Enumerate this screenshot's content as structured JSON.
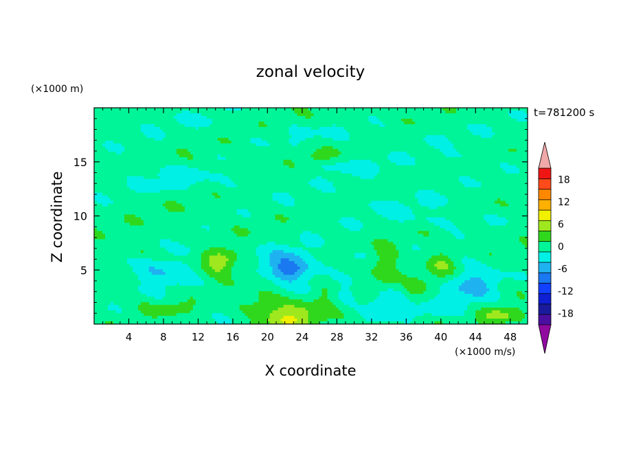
{
  "chart_data": {
    "type": "heatmap",
    "title": "zonal velocity",
    "xlabel": "X coordinate",
    "ylabel": "Z coordinate",
    "x_unit": "(×1000 m/s)",
    "y_unit": "(×1000 m)",
    "time_label": "t=781200 s",
    "xlim": [
      0,
      50
    ],
    "ylim": [
      0,
      20
    ],
    "x_ticks": [
      4,
      8,
      12,
      16,
      20,
      24,
      28,
      32,
      36,
      40,
      44,
      48
    ],
    "y_ticks": [
      5,
      10,
      15
    ],
    "colorbar": {
      "levels": [
        -21,
        -18,
        -15,
        -12,
        -9,
        -6,
        -3,
        0,
        3,
        6,
        9,
        12,
        15,
        18,
        21
      ],
      "tick_labels": [
        18,
        12,
        6,
        0,
        -6,
        -12,
        -18
      ],
      "colors": [
        "#4a0fa0",
        "#1a1a9c",
        "#0f1fd2",
        "#1140ff",
        "#1a78f0",
        "#1fb2f0",
        "#00f0e6",
        "#00f598",
        "#30d81d",
        "#a0e81e",
        "#f0f000",
        "#ffb000",
        "#ff8800",
        "#ff4a1a",
        "#f01515"
      ],
      "over_color": "#f0a8a8",
      "under_color": "#900aa0"
    },
    "field": {
      "background": 1.5,
      "blobs": [
        {
          "x": 22.5,
          "z": 5.3,
          "sx": 3.2,
          "sz": 1.6,
          "amp": -7.5
        },
        {
          "x": 22.5,
          "z": 5.0,
          "sx": 1.6,
          "sz": 0.7,
          "amp": -3.5
        },
        {
          "x": 7.5,
          "z": 5.0,
          "sx": 3.5,
          "sz": 1.4,
          "amp": -5.0
        },
        {
          "x": 33.5,
          "z": 2.0,
          "sx": 2.5,
          "sz": 1.4,
          "amp": -4.5
        },
        {
          "x": 43.5,
          "z": 3.6,
          "sx": 3.0,
          "sz": 2.3,
          "amp": -4.8
        },
        {
          "x": 39.5,
          "z": 1.2,
          "sx": 3.0,
          "sz": 0.7,
          "amp": -3.0
        },
        {
          "x": 29.0,
          "z": 2.5,
          "sx": 1.2,
          "sz": 1.0,
          "amp": -2.5
        },
        {
          "x": 30.0,
          "z": 6.3,
          "sx": 1.8,
          "sz": 0.8,
          "amp": -2.2
        },
        {
          "x": 12.0,
          "z": 7.0,
          "sx": 4.0,
          "sz": 0.6,
          "amp": -2.0
        },
        {
          "x": 14.5,
          "z": 5.7,
          "sx": 2.0,
          "sz": 1.2,
          "amp": 7.5
        },
        {
          "x": 22.5,
          "z": 0.7,
          "sx": 3.5,
          "sz": 1.5,
          "amp": 7.0
        },
        {
          "x": 33.5,
          "z": 5.2,
          "sx": 1.6,
          "sz": 1.6,
          "amp": 5.0
        },
        {
          "x": 40.0,
          "z": 5.4,
          "sx": 1.7,
          "sz": 1.3,
          "amp": 4.5
        },
        {
          "x": 46.5,
          "z": 0.7,
          "sx": 2.5,
          "sz": 0.8,
          "amp": 6.0
        },
        {
          "x": 8.0,
          "z": 1.5,
          "sx": 3.0,
          "sz": 0.6,
          "amp": 2.5
        },
        {
          "x": 19.0,
          "z": 2.0,
          "sx": 2.0,
          "sz": 1.0,
          "amp": 2.5
        },
        {
          "x": 5.0,
          "z": 6.7,
          "sx": 2.0,
          "sz": 0.6,
          "amp": 2.5
        },
        {
          "x": 26.5,
          "z": 3.0,
          "sx": 1.2,
          "sz": 1.2,
          "amp": 2.0
        },
        {
          "x": 37.0,
          "z": 3.0,
          "sx": 1.2,
          "sz": 1.0,
          "amp": 2.0
        },
        {
          "x": 26.0,
          "z": 15.5,
          "sx": 1.5,
          "sz": 0.5,
          "amp": 3.0
        },
        {
          "x": 12.0,
          "z": 13.0,
          "sx": 12.0,
          "sz": 1.0,
          "amp": -1.5
        },
        {
          "x": 35.0,
          "z": 11.0,
          "sx": 10.0,
          "sz": 1.0,
          "amp": -1.5
        },
        {
          "x": 30.0,
          "z": 17.5,
          "sx": 14.0,
          "sz": 1.0,
          "amp": -1.2
        },
        {
          "x": 10.0,
          "z": 18.8,
          "sx": 6.0,
          "sz": 0.8,
          "amp": -1.3
        },
        {
          "x": 9.0,
          "z": 14.0,
          "sx": 3.0,
          "sz": 0.6,
          "amp": -2.5
        },
        {
          "x": 30.0,
          "z": 14.6,
          "sx": 6.0,
          "sz": 0.8,
          "amp": -2.0
        },
        {
          "x": 42.0,
          "z": 15.5,
          "sx": 3.0,
          "sz": 0.5,
          "amp": -2.0
        },
        {
          "x": 40.0,
          "z": 9.5,
          "sx": 6.0,
          "sz": 0.7,
          "amp": -2.0
        }
      ]
    }
  }
}
